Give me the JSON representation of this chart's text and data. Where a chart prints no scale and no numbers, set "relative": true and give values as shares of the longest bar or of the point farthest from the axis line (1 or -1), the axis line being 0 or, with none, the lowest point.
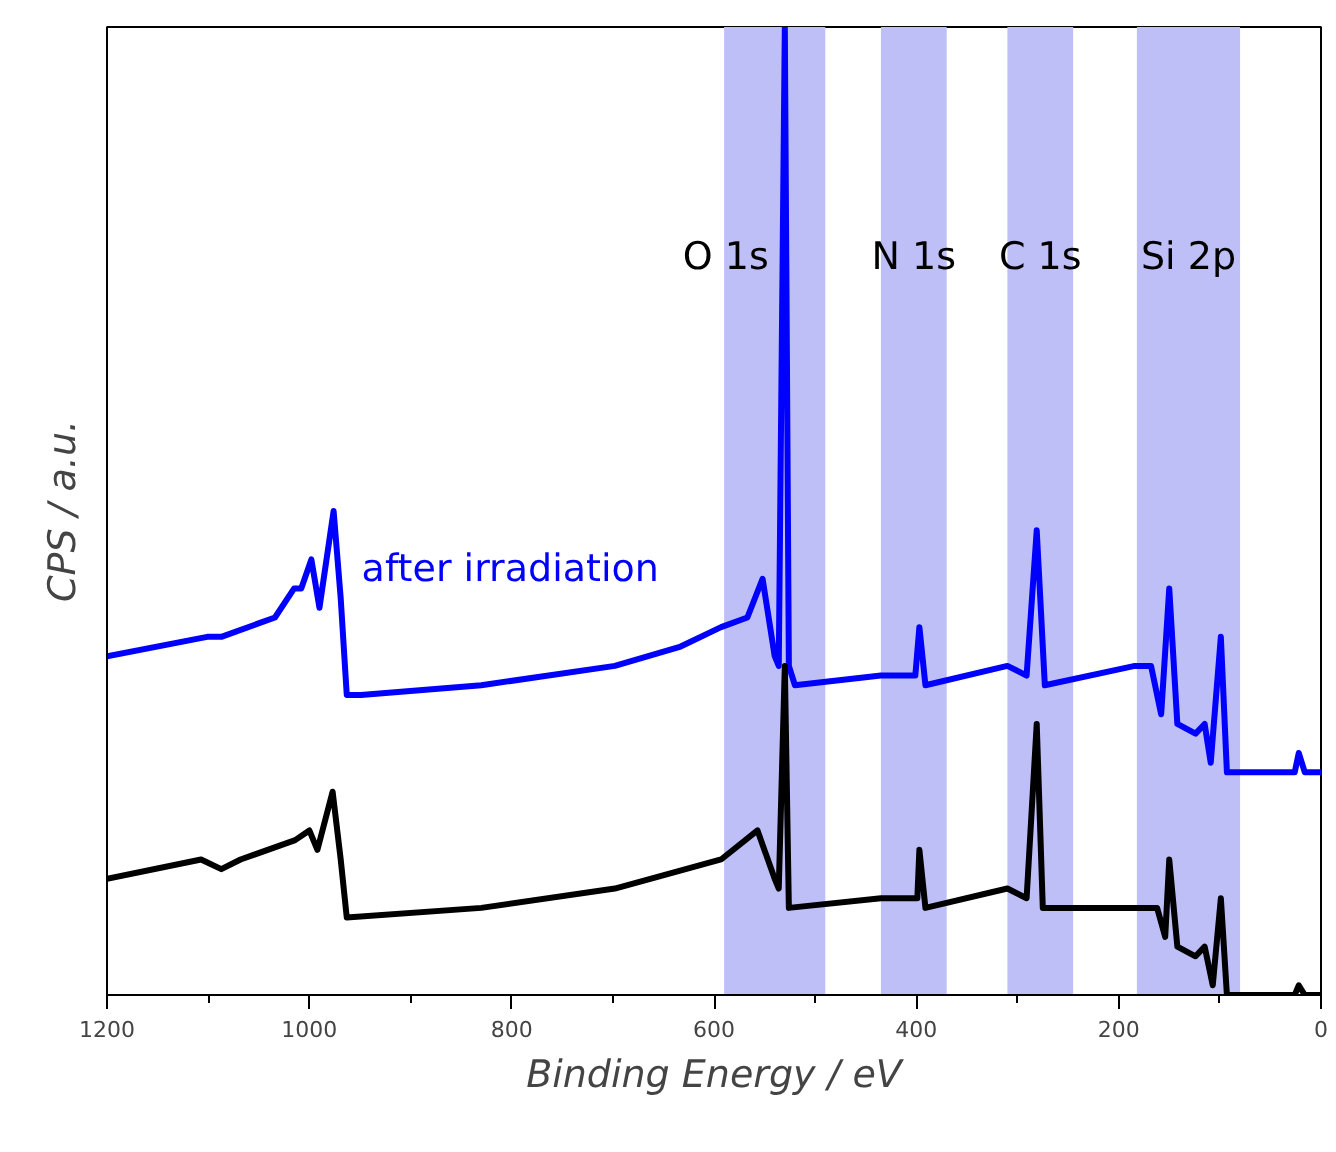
{
  "chart_data": {
    "type": "line",
    "xlabel": "Binding Energy / eV",
    "ylabel": "CPS / a.u.",
    "relative": true,
    "xlim": [
      1200,
      0
    ],
    "xticks": [
      0,
      200,
      400,
      600,
      800,
      1000,
      1200
    ],
    "grid": false,
    "marker": "none",
    "line_style": "solid",
    "series": [
      {
        "name": "after irradiation",
        "color": "#0000ff",
        "x": [
          1200,
          1101,
          1087,
          1034,
          1015,
          1008,
          998,
          990,
          976,
          969,
          963,
          949,
          830,
          698,
          633,
          593,
          567,
          552,
          540,
          536,
          530,
          526,
          520,
          435,
          401,
          397,
          391,
          310,
          291,
          281,
          273,
          184,
          168,
          158,
          150,
          142,
          124,
          115,
          109,
          99,
          93,
          26,
          22,
          16,
          0
        ],
        "values": [
          0.35,
          0.37,
          0.37,
          0.39,
          0.42,
          0.42,
          0.45,
          0.4,
          0.5,
          0.41,
          0.31,
          0.31,
          0.32,
          0.34,
          0.36,
          0.38,
          0.39,
          0.43,
          0.35,
          0.34,
          1.0,
          0.34,
          0.32,
          0.33,
          0.33,
          0.38,
          0.32,
          0.34,
          0.33,
          0.48,
          0.32,
          0.34,
          0.34,
          0.29,
          0.42,
          0.28,
          0.27,
          0.28,
          0.24,
          0.37,
          0.23,
          0.23,
          0.25,
          0.23,
          0.23
        ]
      },
      {
        "color": "#000000",
        "x": [
          1200,
          1107,
          1087,
          1068,
          1014,
          1000,
          992,
          977,
          969,
          963,
          830,
          698,
          593,
          557,
          540,
          536,
          530,
          526,
          435,
          399,
          397,
          391,
          310,
          291,
          281,
          275,
          178,
          162,
          154,
          150,
          142,
          124,
          115,
          107,
          99,
          93,
          26,
          22,
          16,
          0
        ],
        "values": [
          0.12,
          0.14,
          0.13,
          0.14,
          0.16,
          0.17,
          0.15,
          0.21,
          0.14,
          0.08,
          0.09,
          0.11,
          0.14,
          0.17,
          0.12,
          0.11,
          0.34,
          0.09,
          0.1,
          0.1,
          0.15,
          0.09,
          0.11,
          0.1,
          0.28,
          0.09,
          0.09,
          0.09,
          0.06,
          0.14,
          0.05,
          0.04,
          0.05,
          0.01,
          0.1,
          0.0,
          0.0,
          0.01,
          0.0,
          0.0
        ]
      }
    ],
    "bands": [
      {
        "axis": "x",
        "from": 590,
        "to": 490,
        "label": "O 1s",
        "color": "#bfbff8"
      },
      {
        "axis": "x",
        "from": 435,
        "to": 370,
        "label": "N 1s",
        "color": "#bfbff8"
      },
      {
        "axis": "x",
        "from": 310,
        "to": 245,
        "label": "C 1s",
        "color": "#bfbff8"
      },
      {
        "axis": "x",
        "from": 182,
        "to": 80,
        "label": "Si 2p",
        "color": "#bfbff8"
      }
    ]
  }
}
